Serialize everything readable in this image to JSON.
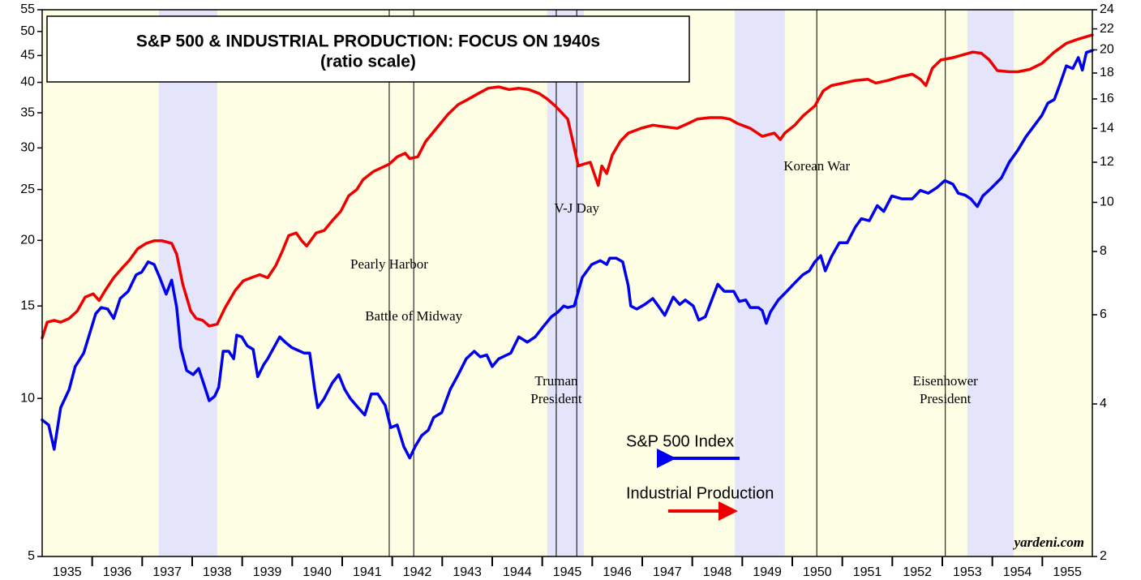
{
  "chart_data": {
    "type": "line",
    "title": "S&P 500 & INDUSTRIAL PRODUCTION: FOCUS ON 1940s",
    "subtitle": "(ratio scale)",
    "source": "yardeni.com",
    "xlim": [
      1935,
      1956
    ],
    "xticks": [
      {
        "value": 1935.5,
        "label": "1935"
      },
      {
        "value": 1936.5,
        "label": "1936"
      },
      {
        "value": 1937.5,
        "label": "1937"
      },
      {
        "value": 1938.5,
        "label": "1938"
      },
      {
        "value": 1939.5,
        "label": "1939"
      },
      {
        "value": 1940.5,
        "label": "1940"
      },
      {
        "value": 1941.5,
        "label": "1941"
      },
      {
        "value": 1942.5,
        "label": "1942"
      },
      {
        "value": 1943.5,
        "label": "1943"
      },
      {
        "value": 1944.5,
        "label": "1944"
      },
      {
        "value": 1945.5,
        "label": "1945"
      },
      {
        "value": 1946.5,
        "label": "1946"
      },
      {
        "value": 1947.5,
        "label": "1947"
      },
      {
        "value": 1948.5,
        "label": "1948"
      },
      {
        "value": 1949.5,
        "label": "1949"
      },
      {
        "value": 1950.5,
        "label": "1950"
      },
      {
        "value": 1951.5,
        "label": "1951"
      },
      {
        "value": 1952.5,
        "label": "1952"
      },
      {
        "value": 1953.5,
        "label": "1953"
      },
      {
        "value": 1954.5,
        "label": "1954"
      },
      {
        "value": 1955.5,
        "label": "1955"
      }
    ],
    "year_ticks": [
      1936,
      1937,
      1938,
      1939,
      1940,
      1941,
      1942,
      1943,
      1944,
      1945,
      1946,
      1947,
      1948,
      1949,
      1950,
      1951,
      1952,
      1953,
      1954,
      1955
    ],
    "ylim": [
      5,
      55
    ],
    "yscale": "log",
    "yticks": [
      5,
      10,
      15,
      20,
      25,
      30,
      35,
      40,
      45,
      50,
      55
    ],
    "y2lim": [
      2,
      24
    ],
    "y2scale": "log",
    "y2ticks": [
      2,
      4,
      6,
      8,
      10,
      12,
      14,
      16,
      18,
      20,
      22,
      24
    ],
    "shaded_periods": [
      [
        1937.33,
        1938.5
      ],
      [
        1945.1,
        1945.83
      ],
      [
        1948.85,
        1949.85
      ],
      [
        1953.5,
        1954.43
      ]
    ],
    "events": [
      {
        "label": [
          "Pearly Harbor"
        ],
        "x": 1941.94
      },
      {
        "label": [
          "Battle of Midway"
        ],
        "x": 1942.43
      },
      {
        "label": [
          "Truman",
          "President"
        ],
        "x": 1945.28
      },
      {
        "label": [
          "V-J Day"
        ],
        "x": 1945.69
      },
      {
        "label": [
          "Korean War"
        ],
        "x": 1950.49
      },
      {
        "label": [
          "Eisenhower",
          "President"
        ],
        "x": 1953.06
      }
    ],
    "series": [
      {
        "name": "S&P 500 Index",
        "color": "#0000ee",
        "axis": "y",
        "x": [
          1935.0,
          1935.13,
          1935.24,
          1935.37,
          1935.54,
          1935.66,
          1935.83,
          1935.94,
          1936.07,
          1936.18,
          1936.31,
          1936.43,
          1936.56,
          1936.72,
          1936.88,
          1936.99,
          1937.12,
          1937.24,
          1937.35,
          1937.48,
          1937.59,
          1937.69,
          1937.77,
          1937.89,
          1938.02,
          1938.13,
          1938.24,
          1938.34,
          1938.45,
          1938.53,
          1938.62,
          1938.73,
          1938.83,
          1938.89,
          1938.99,
          1939.1,
          1939.22,
          1939.31,
          1939.43,
          1939.51,
          1939.75,
          1939.86,
          1939.99,
          1940.24,
          1940.35,
          1940.45,
          1940.51,
          1940.64,
          1940.8,
          1940.93,
          1941.05,
          1941.16,
          1941.32,
          1941.45,
          1941.58,
          1941.71,
          1941.86,
          1941.97,
          1942.1,
          1942.23,
          1942.35,
          1942.46,
          1942.59,
          1942.72,
          1942.83,
          1942.99,
          1943.16,
          1943.32,
          1943.48,
          1943.64,
          1943.76,
          1943.89,
          1944.0,
          1944.13,
          1944.37,
          1944.53,
          1944.7,
          1944.86,
          1945.02,
          1945.18,
          1945.31,
          1945.43,
          1945.51,
          1945.64,
          1945.8,
          1945.99,
          1946.16,
          1946.29,
          1946.35,
          1946.48,
          1946.61,
          1946.72,
          1946.77,
          1946.89,
          1947.05,
          1947.21,
          1947.32,
          1947.45,
          1947.62,
          1947.75,
          1947.86,
          1948.02,
          1948.13,
          1948.26,
          1948.39,
          1948.51,
          1948.64,
          1948.83,
          1948.94,
          1949.07,
          1949.16,
          1949.32,
          1949.4,
          1949.48,
          1949.56,
          1949.72,
          1949.89,
          1950.05,
          1950.21,
          1950.34,
          1950.45,
          1950.57,
          1950.66,
          1950.78,
          1950.94,
          1951.1,
          1951.26,
          1951.38,
          1951.54,
          1951.7,
          1951.83,
          1951.99,
          1952.19,
          1952.4,
          1952.56,
          1952.72,
          1952.89,
          1953.05,
          1953.21,
          1953.32,
          1953.45,
          1953.57,
          1953.7,
          1953.81,
          1953.97,
          1954.18,
          1954.34,
          1954.51,
          1954.67,
          1954.83,
          1954.99,
          1955.11,
          1955.24,
          1955.35,
          1955.48,
          1955.61,
          1955.72,
          1955.8,
          1955.88,
          1956.0
        ],
        "values": [
          9.1,
          8.9,
          8.0,
          9.6,
          10.4,
          11.5,
          12.2,
          13.2,
          14.5,
          14.9,
          14.8,
          14.2,
          15.5,
          16.0,
          17.2,
          17.4,
          18.2,
          18.0,
          17.0,
          15.8,
          16.8,
          14.9,
          12.5,
          11.3,
          11.1,
          11.4,
          10.6,
          9.9,
          10.1,
          10.5,
          12.3,
          12.3,
          11.9,
          13.2,
          13.1,
          12.6,
          12.4,
          11.0,
          11.6,
          11.9,
          13.1,
          12.8,
          12.5,
          12.2,
          12.2,
          10.4,
          9.6,
          10.0,
          10.7,
          11.1,
          10.4,
          10.0,
          9.6,
          9.3,
          10.2,
          10.2,
          9.7,
          8.8,
          8.9,
          8.1,
          7.7,
          8.1,
          8.5,
          8.7,
          9.2,
          9.4,
          10.4,
          11.1,
          11.9,
          12.3,
          12.0,
          12.1,
          11.5,
          11.9,
          12.2,
          13.1,
          12.8,
          13.1,
          13.7,
          14.3,
          14.6,
          15.0,
          14.9,
          15.0,
          17.0,
          18.0,
          18.3,
          18.0,
          18.5,
          18.5,
          18.2,
          16.4,
          15.0,
          14.8,
          15.1,
          15.5,
          15.0,
          14.4,
          15.6,
          15.1,
          15.4,
          15.0,
          14.1,
          14.3,
          15.4,
          16.5,
          16.0,
          16.0,
          15.3,
          15.4,
          14.9,
          14.9,
          14.7,
          13.9,
          14.6,
          15.4,
          16.0,
          16.6,
          17.2,
          17.5,
          18.2,
          18.7,
          17.5,
          18.6,
          19.8,
          19.8,
          21.2,
          22.0,
          21.8,
          23.3,
          22.7,
          24.3,
          24.0,
          24.0,
          24.9,
          24.6,
          25.2,
          26.0,
          25.6,
          24.6,
          24.4,
          24.0,
          23.2,
          24.3,
          25.1,
          26.3,
          28.2,
          29.7,
          31.5,
          33.0,
          34.6,
          36.5,
          37.1,
          39.6,
          43.0,
          42.5,
          44.6,
          42.2,
          45.6,
          46.0
        ]
      },
      {
        "name": "Industrial Production",
        "color": "#ee0000",
        "axis": "y2",
        "x": [
          1935.0,
          1935.1,
          1935.24,
          1935.37,
          1935.54,
          1935.7,
          1935.86,
          1936.02,
          1936.14,
          1936.26,
          1936.43,
          1936.59,
          1936.75,
          1936.91,
          1937.08,
          1937.24,
          1937.4,
          1937.59,
          1937.69,
          1937.81,
          1937.97,
          1938.08,
          1938.21,
          1938.34,
          1938.5,
          1938.66,
          1938.86,
          1939.02,
          1939.18,
          1939.35,
          1939.51,
          1939.67,
          1939.8,
          1939.93,
          1940.08,
          1940.19,
          1940.29,
          1940.48,
          1940.64,
          1940.8,
          1940.97,
          1941.13,
          1941.29,
          1941.42,
          1941.62,
          1941.78,
          1941.94,
          1942.1,
          1942.26,
          1942.35,
          1942.51,
          1942.67,
          1942.91,
          1943.11,
          1943.32,
          1943.48,
          1943.72,
          1943.92,
          1944.13,
          1944.34,
          1944.53,
          1944.73,
          1944.94,
          1945.1,
          1945.26,
          1945.51,
          1945.59,
          1945.72,
          1945.83,
          1945.96,
          1946.12,
          1946.19,
          1946.29,
          1946.4,
          1946.56,
          1946.72,
          1946.97,
          1947.21,
          1947.45,
          1947.7,
          1947.91,
          1948.1,
          1948.35,
          1948.59,
          1948.75,
          1948.91,
          1949.16,
          1949.4,
          1949.64,
          1949.76,
          1949.85,
          1950.05,
          1950.21,
          1950.45,
          1950.62,
          1950.78,
          1951.02,
          1951.26,
          1951.51,
          1951.67,
          1951.91,
          1952.16,
          1952.4,
          1952.56,
          1952.67,
          1952.8,
          1952.97,
          1953.21,
          1953.45,
          1953.61,
          1953.78,
          1953.94,
          1954.1,
          1954.34,
          1954.51,
          1954.75,
          1954.99,
          1955.24,
          1955.48,
          1955.72,
          1956.0
        ],
        "values": [
          5.4,
          5.8,
          5.85,
          5.8,
          5.9,
          6.1,
          6.5,
          6.6,
          6.4,
          6.7,
          7.1,
          7.4,
          7.7,
          8.1,
          8.3,
          8.4,
          8.4,
          8.3,
          7.9,
          6.9,
          6.1,
          5.9,
          5.85,
          5.7,
          5.75,
          6.2,
          6.7,
          7.0,
          7.1,
          7.2,
          7.1,
          7.5,
          8.0,
          8.6,
          8.7,
          8.4,
          8.2,
          8.7,
          8.8,
          9.2,
          9.6,
          10.3,
          10.6,
          11.1,
          11.5,
          11.7,
          11.9,
          12.3,
          12.5,
          12.2,
          12.3,
          13.2,
          14.1,
          14.9,
          15.6,
          15.9,
          16.4,
          16.8,
          16.9,
          16.7,
          16.8,
          16.7,
          16.4,
          16.0,
          15.5,
          14.6,
          13.5,
          11.8,
          11.9,
          12.0,
          10.8,
          11.8,
          11.4,
          12.4,
          13.2,
          13.7,
          14.0,
          14.2,
          14.1,
          14.0,
          14.3,
          14.6,
          14.7,
          14.7,
          14.6,
          14.3,
          14.0,
          13.5,
          13.7,
          13.3,
          13.7,
          14.2,
          14.8,
          15.5,
          16.6,
          17.0,
          17.2,
          17.4,
          17.5,
          17.2,
          17.4,
          17.7,
          17.9,
          17.5,
          17.0,
          18.4,
          19.1,
          19.3,
          19.6,
          19.8,
          19.7,
          19.1,
          18.2,
          18.1,
          18.1,
          18.3,
          18.8,
          19.8,
          20.6,
          21.0,
          21.4
        ]
      }
    ]
  }
}
